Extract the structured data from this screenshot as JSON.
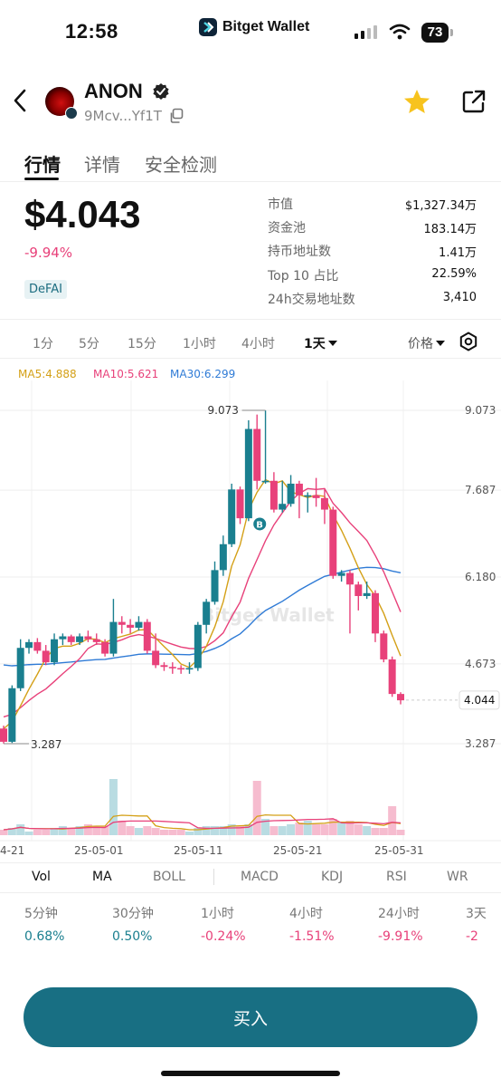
{
  "status_bar": {
    "time": "12:58",
    "app_name": "Bitget Wallet",
    "battery": "73"
  },
  "token": {
    "name": "ANON",
    "address": "9Mcv...Yf1T",
    "icons": {
      "back": "back-arrow-icon",
      "verified": "verified-check-icon",
      "copy": "copy-icon",
      "favorite": "star-icon",
      "share": "share-icon"
    }
  },
  "tabs": [
    "行情",
    "详情",
    "安全检测"
  ],
  "price": {
    "value": "$4.043",
    "change": "-9.94%",
    "tag": "DeFAI"
  },
  "stats": [
    {
      "label": "市值",
      "value": "$1,327.34万"
    },
    {
      "label": "资金池",
      "value": "183.14万"
    },
    {
      "label": "持币地址数",
      "value": "1.41万"
    },
    {
      "label": "Top 10 占比",
      "value": "22.59%"
    },
    {
      "label": "24h交易地址数",
      "value": "3,410"
    }
  ],
  "timeframes": [
    "1分",
    "5分",
    "15分",
    "1小时",
    "4小时",
    "1天"
  ],
  "price_type": "价格",
  "ma_legend": {
    "ma5": "MA5:4.888",
    "ma10": "MA10:5.621",
    "ma30": "MA30:6.299"
  },
  "colors": {
    "up": "#1a7f8f",
    "down": "#e8417a",
    "ma5": "#d4a017",
    "ma10": "#e8417a",
    "ma30": "#2f7bd6",
    "accent": "#186f83"
  },
  "watermark": "Bitget Wallet",
  "chart_data": {
    "type": "candlestick",
    "y_ticks": [
      "9.073",
      "7.687",
      "6.180",
      "4.673",
      "3.287"
    ],
    "x_ticks": [
      "4-21",
      "25-05-01",
      "25-05-11",
      "25-05-21",
      "25-05-31"
    ],
    "current_price_label": "4.044",
    "high_label": "9.073",
    "low_label": "3.287",
    "trade_marker": "B",
    "candles": [
      [
        3.55,
        3.32,
        3.6,
        3.29
      ],
      [
        3.32,
        4.25,
        4.3,
        3.3
      ],
      [
        4.25,
        4.95,
        5.1,
        4.2
      ],
      [
        4.95,
        5.05,
        5.1,
        4.85
      ],
      [
        5.05,
        4.9,
        5.12,
        4.85
      ],
      [
        4.9,
        4.7,
        5.0,
        4.65
      ],
      [
        4.7,
        5.1,
        5.2,
        4.65
      ],
      [
        5.1,
        5.15,
        5.2,
        5.0
      ],
      [
        5.15,
        5.05,
        5.18,
        5.0
      ],
      [
        5.05,
        5.15,
        5.2,
        5.0
      ],
      [
        5.15,
        5.1,
        5.25,
        5.05
      ],
      [
        5.1,
        5.05,
        5.2,
        5.0
      ],
      [
        5.05,
        4.85,
        5.1,
        4.8
      ],
      [
        4.85,
        5.4,
        5.8,
        4.8
      ],
      [
        5.4,
        5.35,
        5.5,
        5.2
      ],
      [
        5.35,
        5.3,
        5.45,
        5.2
      ],
      [
        5.3,
        5.4,
        5.5,
        5.25
      ],
      [
        5.4,
        4.9,
        5.45,
        4.85
      ],
      [
        4.9,
        4.65,
        5.2,
        4.6
      ],
      [
        4.65,
        4.62,
        4.7,
        4.55
      ],
      [
        4.62,
        4.6,
        4.7,
        4.5
      ],
      [
        4.6,
        4.58,
        4.65,
        4.5
      ],
      [
        4.58,
        4.6,
        4.7,
        4.5
      ],
      [
        4.6,
        5.35,
        5.4,
        4.55
      ],
      [
        5.35,
        5.75,
        5.8,
        5.2
      ],
      [
        5.75,
        6.3,
        6.45,
        5.7
      ],
      [
        6.3,
        6.75,
        6.9,
        6.2
      ],
      [
        6.75,
        7.7,
        7.8,
        6.7
      ],
      [
        7.7,
        7.2,
        7.75,
        7.1
      ],
      [
        7.2,
        8.75,
        8.9,
        7.15
      ],
      [
        8.75,
        7.85,
        9.0,
        7.7
      ],
      [
        7.85,
        7.85,
        9.07,
        7.8
      ],
      [
        7.85,
        7.35,
        8.0,
        7.3
      ],
      [
        7.35,
        7.45,
        7.85,
        7.3
      ],
      [
        7.45,
        7.8,
        7.95,
        7.4
      ],
      [
        7.8,
        7.6,
        7.85,
        7.2
      ],
      [
        7.6,
        7.6,
        7.65,
        7.3
      ],
      [
        7.6,
        7.55,
        7.9,
        7.4
      ],
      [
        7.55,
        7.35,
        7.7,
        7.1
      ],
      [
        7.35,
        6.2,
        7.4,
        6.15
      ],
      [
        6.2,
        6.25,
        6.3,
        6.1
      ],
      [
        6.25,
        6.05,
        6.3,
        5.2
      ],
      [
        6.05,
        5.85,
        6.1,
        5.6
      ],
      [
        5.85,
        5.9,
        6.1,
        5.8
      ],
      [
        5.9,
        5.2,
        5.95,
        5.05
      ],
      [
        5.2,
        4.75,
        5.25,
        4.7
      ],
      [
        4.75,
        4.15,
        4.8,
        4.1
      ],
      [
        4.15,
        4.04,
        4.18,
        3.97
      ]
    ],
    "volume": [
      3,
      4,
      6,
      2,
      3,
      3,
      4,
      5,
      4,
      5,
      6,
      5,
      5,
      31,
      8,
      5,
      4,
      5,
      4,
      3,
      3,
      3,
      2,
      4,
      5,
      5,
      5,
      6,
      5,
      6,
      30,
      9,
      5,
      5,
      6,
      7,
      8,
      6,
      6,
      9,
      7,
      8,
      6,
      5,
      4,
      4,
      16,
      3
    ]
  },
  "indicator_tabs": [
    "Vol",
    "MA",
    "BOLL",
    "MACD",
    "KDJ",
    "RSI",
    "WR"
  ],
  "performance": [
    {
      "label": "5分钟",
      "value": "0.68%",
      "dir": "up"
    },
    {
      "label": "30分钟",
      "value": "0.50%",
      "dir": "up"
    },
    {
      "label": "1小时",
      "value": "-0.24%",
      "dir": "down"
    },
    {
      "label": "4小时",
      "value": "-1.51%",
      "dir": "down"
    },
    {
      "label": "24小时",
      "value": "-9.91%",
      "dir": "down"
    },
    {
      "label": "3天",
      "value": "-2",
      "dir": "down"
    }
  ],
  "buy_label": "买入"
}
